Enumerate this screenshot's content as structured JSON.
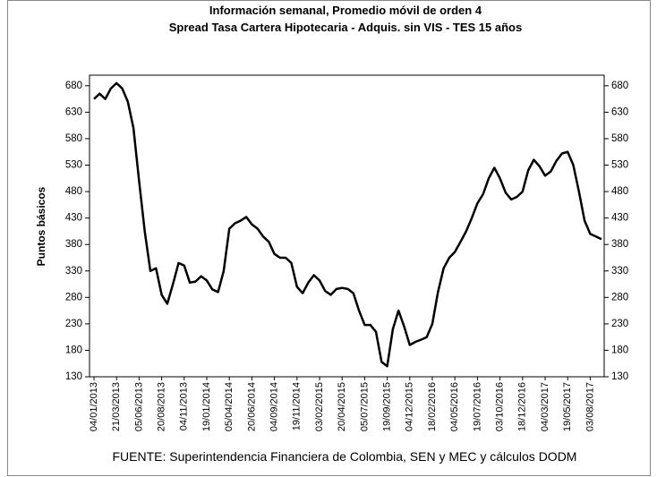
{
  "chart_data": {
    "type": "line",
    "title": "Información semanal, Promedio móvil de orden 4",
    "subtitle": "Spread Tasa Cartera Hipotecaria - Adquis. sin VIS -  TES 15 años",
    "y_label": "Puntos básicos",
    "source": "FUENTE: Superintendencia Financiera de Colombia, SEN y MEC y cálculos DODM",
    "categories": [
      "04/01/2013",
      null,
      null,
      null,
      "21/03/2013",
      null,
      null,
      null,
      "05/06/2013",
      null,
      null,
      null,
      "20/08/2013",
      null,
      null,
      null,
      "04/11/2013",
      null,
      null,
      null,
      "19/01/2014",
      null,
      null,
      null,
      "05/04/2014",
      null,
      null,
      null,
      "20/06/2014",
      null,
      null,
      null,
      "04/09/2014",
      null,
      null,
      null,
      "19/11/2014",
      null,
      null,
      null,
      "03/02/2015",
      null,
      null,
      null,
      "20/04/2015",
      null,
      null,
      null,
      "05/07/2015",
      null,
      null,
      null,
      "19/09/2015",
      null,
      null,
      null,
      "04/12/2015",
      null,
      null,
      null,
      "18/02/2016",
      null,
      null,
      null,
      "04/05/2016",
      null,
      null,
      null,
      "19/07/2016",
      null,
      null,
      null,
      "03/10/2016",
      null,
      null,
      null,
      "18/12/2016",
      null,
      null,
      null,
      "04/03/2017",
      null,
      null,
      null,
      "19/05/2017",
      null,
      null,
      null,
      "03/08/2017",
      null,
      null
    ],
    "series": [
      {
        "color": "#000000",
        "values": [
          655,
          665,
          655,
          675,
          685,
          675,
          650,
          600,
          500,
          405,
          330,
          335,
          285,
          268,
          305,
          345,
          340,
          308,
          310,
          320,
          312,
          295,
          290,
          330,
          410,
          420,
          425,
          432,
          418,
          410,
          395,
          385,
          362,
          355,
          355,
          345,
          300,
          288,
          308,
          322,
          312,
          292,
          285,
          296,
          298,
          296,
          288,
          255,
          228,
          228,
          215,
          158,
          150,
          220,
          255,
          225,
          190,
          196,
          200,
          205,
          230,
          290,
          335,
          355,
          366,
          385,
          405,
          430,
          458,
          475,
          505,
          525,
          505,
          478,
          465,
          470,
          480,
          520,
          540,
          528,
          510,
          518,
          538,
          552,
          555,
          530,
          480,
          425,
          400,
          395,
          390
        ]
      }
    ],
    "ylim": [
      130,
      700
    ],
    "yticks": [
      130,
      180,
      230,
      280,
      330,
      380,
      430,
      480,
      530,
      580,
      630,
      680
    ],
    "y2lim": [
      130,
      700
    ],
    "y2ticks": [
      130,
      180,
      230,
      280,
      330,
      380,
      430,
      480,
      530,
      580,
      630,
      680
    ]
  }
}
